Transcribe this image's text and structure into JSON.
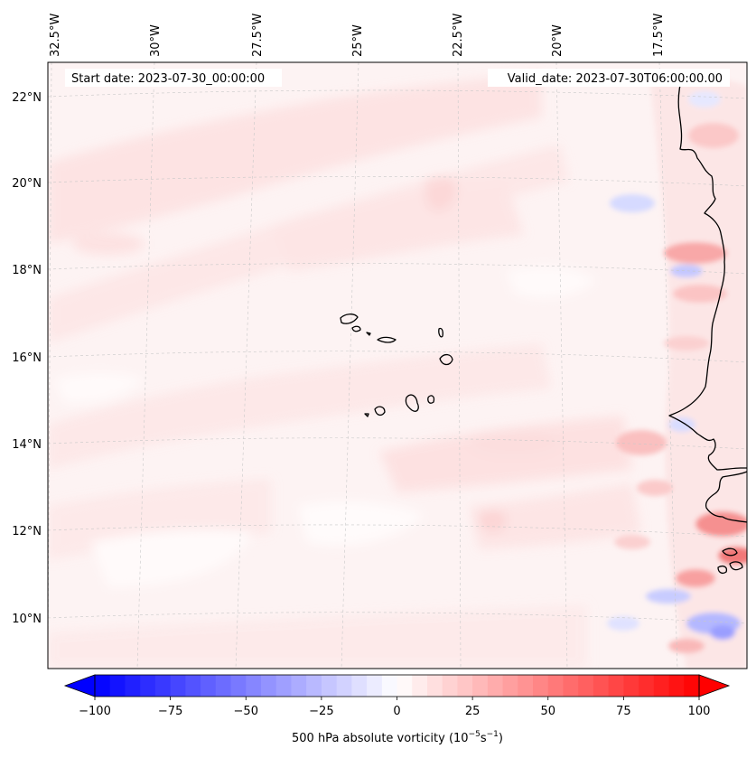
{
  "map": {
    "start_date_label": "Start date: 2023-07-30_00:00:00",
    "valid_date_label": "Valid_date: 2023-07-30T06:00:00.00",
    "longitude_labels": [
      "32.5°W",
      "30°W",
      "27.5°W",
      "25°W",
      "22.5°W",
      "20°W",
      "17.5°W"
    ],
    "latitude_labels": [
      "22°N",
      "20°N",
      "18°N",
      "16°N",
      "14°N",
      "12°N",
      "10°N"
    ],
    "field": "500 hPa absolute vorticity",
    "units": "10^-5 s^-1"
  },
  "colorbar": {
    "label": "500 hPa absolute vorticity (10",
    "label_exp1": "−5",
    "label_mid": "s",
    "label_exp2": "−1",
    "label_end": ")",
    "min": -100,
    "max": 100,
    "levels": 41,
    "ticks": [
      "−100",
      "−75",
      "−50",
      "−25",
      "0",
      "25",
      "50",
      "75",
      "100"
    ],
    "tick_values": [
      -100,
      -75,
      -50,
      -25,
      0,
      25,
      50,
      75,
      100
    ],
    "colormap": "bwr",
    "colors": {
      "negative": "#0000ff",
      "zero": "#ffffff",
      "positive": "#ff0000"
    }
  }
}
